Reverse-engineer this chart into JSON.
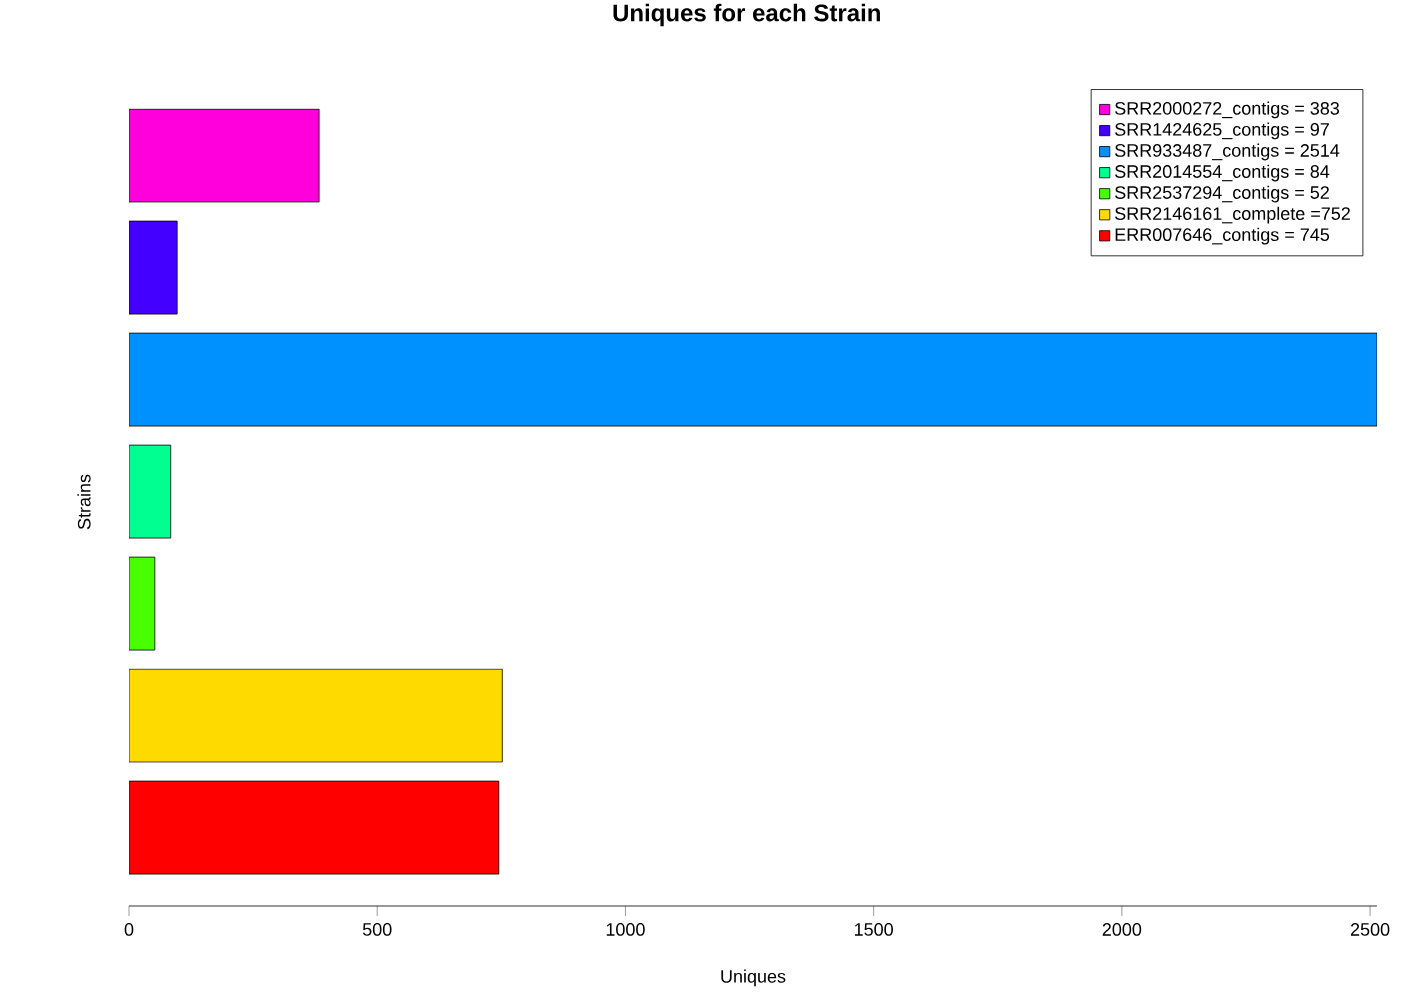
{
  "chart_data": {
    "type": "bar",
    "orientation": "horizontal",
    "stacked": true,
    "title": "Uniques for each Strain",
    "xlabel": "Uniques",
    "ylabel": "Strains",
    "categories": [
      null,
      null,
      null,
      null,
      null,
      null,
      null
    ],
    "series": [
      {
        "name": "SRR2000272_contigs = 383",
        "color": "#ff00dd",
        "values": [
          383,
          0,
          0,
          0,
          0,
          0,
          0
        ]
      },
      {
        "name": "SRR1424625_contigs = 97",
        "color": "#4400ff",
        "values": [
          0,
          97,
          0,
          0,
          0,
          0,
          0
        ]
      },
      {
        "name": "SRR933487_contigs = 2514",
        "color": "#0091ff",
        "values": [
          0,
          0,
          2514,
          0,
          0,
          0,
          0
        ]
      },
      {
        "name": "SRR2014554_contigs = 84",
        "color": "#00ff91",
        "values": [
          0,
          0,
          0,
          84,
          0,
          0,
          0
        ]
      },
      {
        "name": "SRR2537294_contigs = 52",
        "color": "#48ff00",
        "values": [
          0,
          0,
          0,
          0,
          52,
          0,
          0
        ]
      },
      {
        "name": "SRR2146161_complete =752",
        "color": "#ffda00",
        "values": [
          0,
          0,
          0,
          0,
          0,
          752,
          0
        ]
      },
      {
        "name": "ERR007646_contigs = 745",
        "color": "#ff0000",
        "values": [
          0,
          0,
          0,
          0,
          0,
          0,
          745
        ]
      }
    ],
    "xlim": [
      0,
      2514
    ],
    "xticks": [
      0,
      500,
      1000,
      1500,
      2000,
      2500
    ],
    "legend": "top right"
  }
}
